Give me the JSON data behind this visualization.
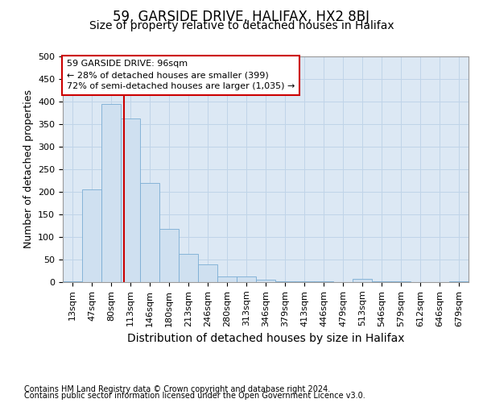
{
  "title1": "59, GARSIDE DRIVE, HALIFAX, HX2 8BJ",
  "title2": "Size of property relative to detached houses in Halifax",
  "xlabel": "Distribution of detached houses by size in Halifax",
  "ylabel": "Number of detached properties",
  "footnote1": "Contains HM Land Registry data © Crown copyright and database right 2024.",
  "footnote2": "Contains public sector information licensed under the Open Government Licence v3.0.",
  "annotation_line1": "59 GARSIDE DRIVE: 96sqm",
  "annotation_line2": "← 28% of detached houses are smaller (399)",
  "annotation_line3": "72% of semi-detached houses are larger (1,035) →",
  "bar_color": "#cfe0f0",
  "bar_edge_color": "#7aadd4",
  "grid_color": "#c0d4e8",
  "bg_color": "#dce8f4",
  "vline_color": "#cc0000",
  "annotation_box_color": "#cc0000",
  "categories": [
    "13sqm",
    "47sqm",
    "80sqm",
    "113sqm",
    "146sqm",
    "180sqm",
    "213sqm",
    "246sqm",
    "280sqm",
    "313sqm",
    "346sqm",
    "379sqm",
    "413sqm",
    "446sqm",
    "479sqm",
    "513sqm",
    "546sqm",
    "579sqm",
    "612sqm",
    "646sqm",
    "679sqm"
  ],
  "values": [
    2,
    205,
    394,
    363,
    220,
    118,
    63,
    40,
    13,
    13,
    6,
    2,
    1,
    1,
    0,
    7,
    1,
    1,
    0,
    0,
    1
  ],
  "ylim": [
    0,
    500
  ],
  "yticks": [
    0,
    50,
    100,
    150,
    200,
    250,
    300,
    350,
    400,
    450,
    500
  ],
  "vline_x": 2.67,
  "title1_fontsize": 12,
  "title2_fontsize": 10,
  "ylabel_fontsize": 9,
  "xlabel_fontsize": 10,
  "tick_fontsize": 8,
  "footnote_fontsize": 7
}
